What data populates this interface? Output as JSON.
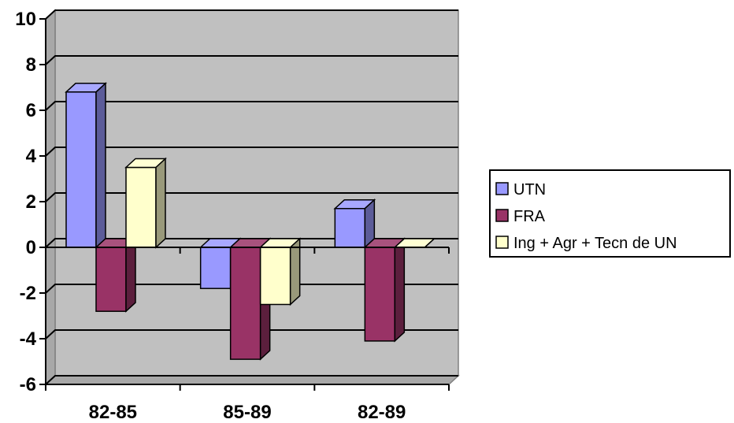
{
  "chart_data": {
    "type": "bar",
    "three_d": true,
    "categories": [
      "82-85",
      "85-89",
      "82-89"
    ],
    "series": [
      {
        "name": "UTN",
        "values": [
          6.8,
          -1.8,
          1.7
        ],
        "color": "#9999FF"
      },
      {
        "name": "FRA",
        "values": [
          -2.8,
          -4.9,
          -4.1
        ],
        "color": "#993366"
      },
      {
        "name": "Ing + Agr + Tecn de UN",
        "values": [
          3.5,
          -2.5,
          0
        ],
        "color": "#FFFFCC"
      }
    ],
    "title": "",
    "xlabel": "",
    "ylabel": "",
    "ylim": [
      -6,
      10
    ],
    "yticks": [
      10,
      8,
      6,
      4,
      2,
      0,
      -2,
      -4,
      -6
    ],
    "grid": true,
    "wall_color": "#C0C0C0",
    "legend_position": "right"
  }
}
